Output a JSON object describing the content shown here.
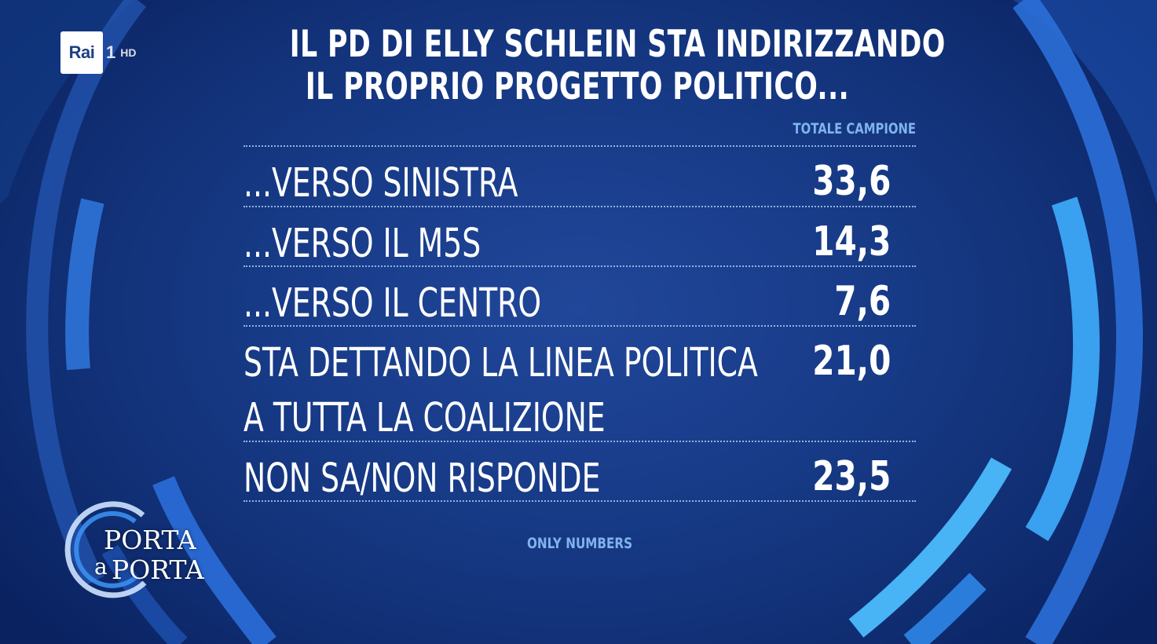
{
  "channel": {
    "brand": "Rai",
    "number": "1",
    "quality": "HD"
  },
  "show": {
    "name_line1": "PORTA",
    "name_line2_a": "a",
    "name_line2_b": "PORTA"
  },
  "colors": {
    "background": "#173a86",
    "accent": "#7fb4ec",
    "ring": "#2f7fe0",
    "text": "#ffffff"
  },
  "chart_data": {
    "type": "table",
    "title_lines": [
      "IL PD DI ELLY SCHLEIN STA INDIRIZZANDO",
      "IL PROPRIO PROGETTO POLITICO..."
    ],
    "column_header": "TOTALE CAMPIONE",
    "rows": [
      {
        "label": "...VERSO SINISTRA",
        "value": 33.6,
        "value_text": "33,6"
      },
      {
        "label": "...VERSO IL M5S",
        "value": 14.3,
        "value_text": "14,3"
      },
      {
        "label": "...VERSO IL CENTRO",
        "value": 7.6,
        "value_text": "7,6"
      },
      {
        "label": "STA DETTANDO LA LINEA POLITICA\nA TUTTA LA COALIZIONE",
        "value": 21.0,
        "value_text": "21,0"
      },
      {
        "label": "NON SA/NON RISPONDE",
        "value": 23.5,
        "value_text": "23,5"
      }
    ],
    "footnote": "ONLY NUMBERS"
  }
}
